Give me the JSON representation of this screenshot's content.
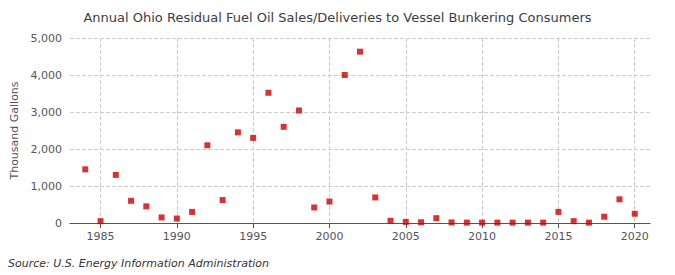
{
  "chart_data": {
    "type": "scatter",
    "title": "Annual Ohio Residual Fuel Oil Sales/Deliveries to Vessel Bunkering Consumers",
    "ylabel": "Thousand Gallons",
    "source": "Source: U.S. Energy Information Administration",
    "x": [
      1984,
      1985,
      1986,
      1987,
      1988,
      1989,
      1990,
      1991,
      1992,
      1993,
      1994,
      1995,
      1996,
      1997,
      1998,
      1999,
      2000,
      2001,
      2002,
      2003,
      2004,
      2005,
      2006,
      2007,
      2008,
      2009,
      2010,
      2011,
      2012,
      2013,
      2014,
      2015,
      2016,
      2017,
      2018,
      2019,
      2020
    ],
    "values": [
      1450,
      50,
      1300,
      600,
      450,
      150,
      120,
      300,
      2100,
      620,
      2450,
      2300,
      3520,
      2600,
      3040,
      420,
      580,
      4000,
      4630,
      690,
      60,
      30,
      20,
      130,
      15,
      10,
      10,
      10,
      10,
      10,
      10,
      300,
      50,
      10,
      170,
      640,
      250
    ],
    "color": "#cc0000",
    "marker": "square",
    "xlim": [
      1983,
      2021
    ],
    "xticks": [
      1985,
      1990,
      1995,
      2000,
      2005,
      2010,
      2015,
      2020
    ],
    "ylim": [
      0,
      5000
    ],
    "yticks": [
      0,
      {
        "value": 1000,
        "label": "1,000"
      },
      {
        "value": 2000,
        "label": "2,000"
      },
      {
        "value": 3000,
        "label": "3,000"
      },
      {
        "value": 4000,
        "label": "4,000"
      },
      {
        "value": 5000,
        "label": "5,000"
      }
    ],
    "grid": true
  }
}
